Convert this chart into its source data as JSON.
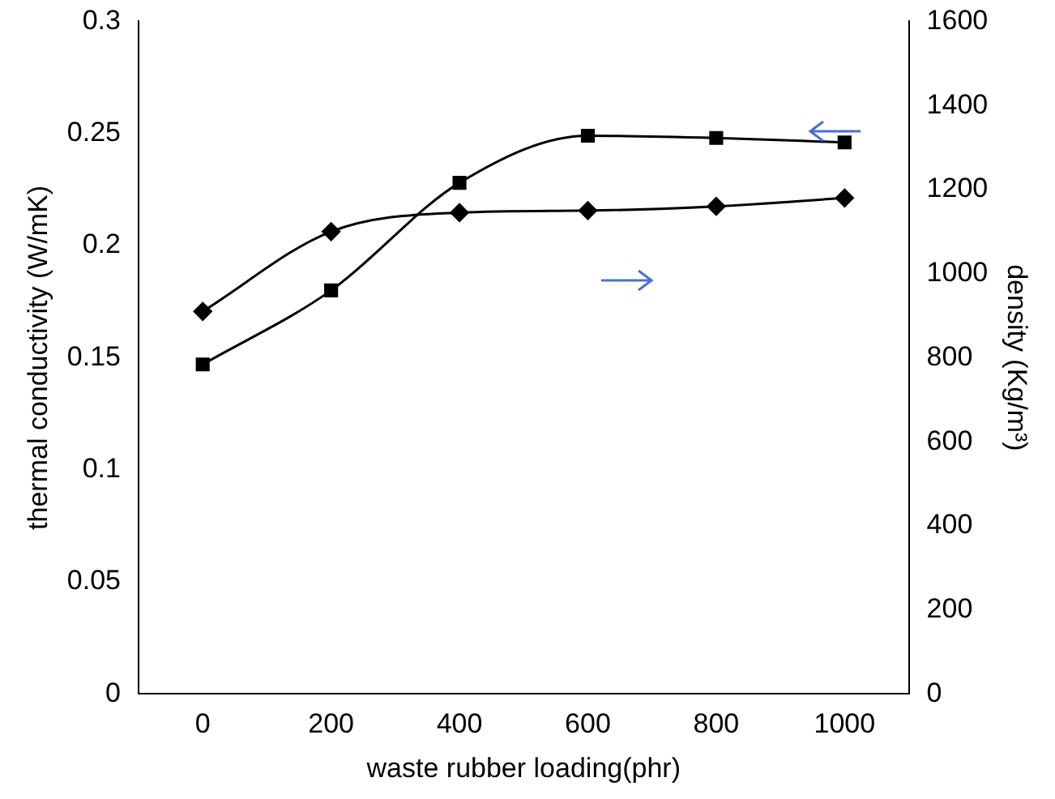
{
  "chart_data": {
    "type": "line",
    "xlabel": "waste rubber loading(phr)",
    "ylabel": "thermal conductivity (W/mK)",
    "y2label": "density (Kg/m³)",
    "categories": [
      "0",
      "200",
      "400",
      "600",
      "800",
      "1000"
    ],
    "series": [
      {
        "color": "#000000",
        "marker": "square",
        "values": [
          0.147,
          0.18,
          0.228,
          0.249,
          0.248,
          0.246
        ]
      },
      {
        "color": "#000000",
        "marker": "diamond",
        "axis": "y2",
        "values": [
          910,
          1100,
          1145,
          1150,
          1160,
          1180
        ]
      }
    ],
    "ylim": [
      0,
      0.3
    ],
    "yticks": [
      0,
      0.05,
      0.1,
      0.15,
      0.2,
      0.25,
      0.3
    ],
    "y2lim": [
      0,
      1600
    ],
    "y2ticks": [
      0,
      200,
      400,
      600,
      800,
      1000,
      1200,
      1400,
      1600
    ],
    "grid": false,
    "legend": false
  }
}
